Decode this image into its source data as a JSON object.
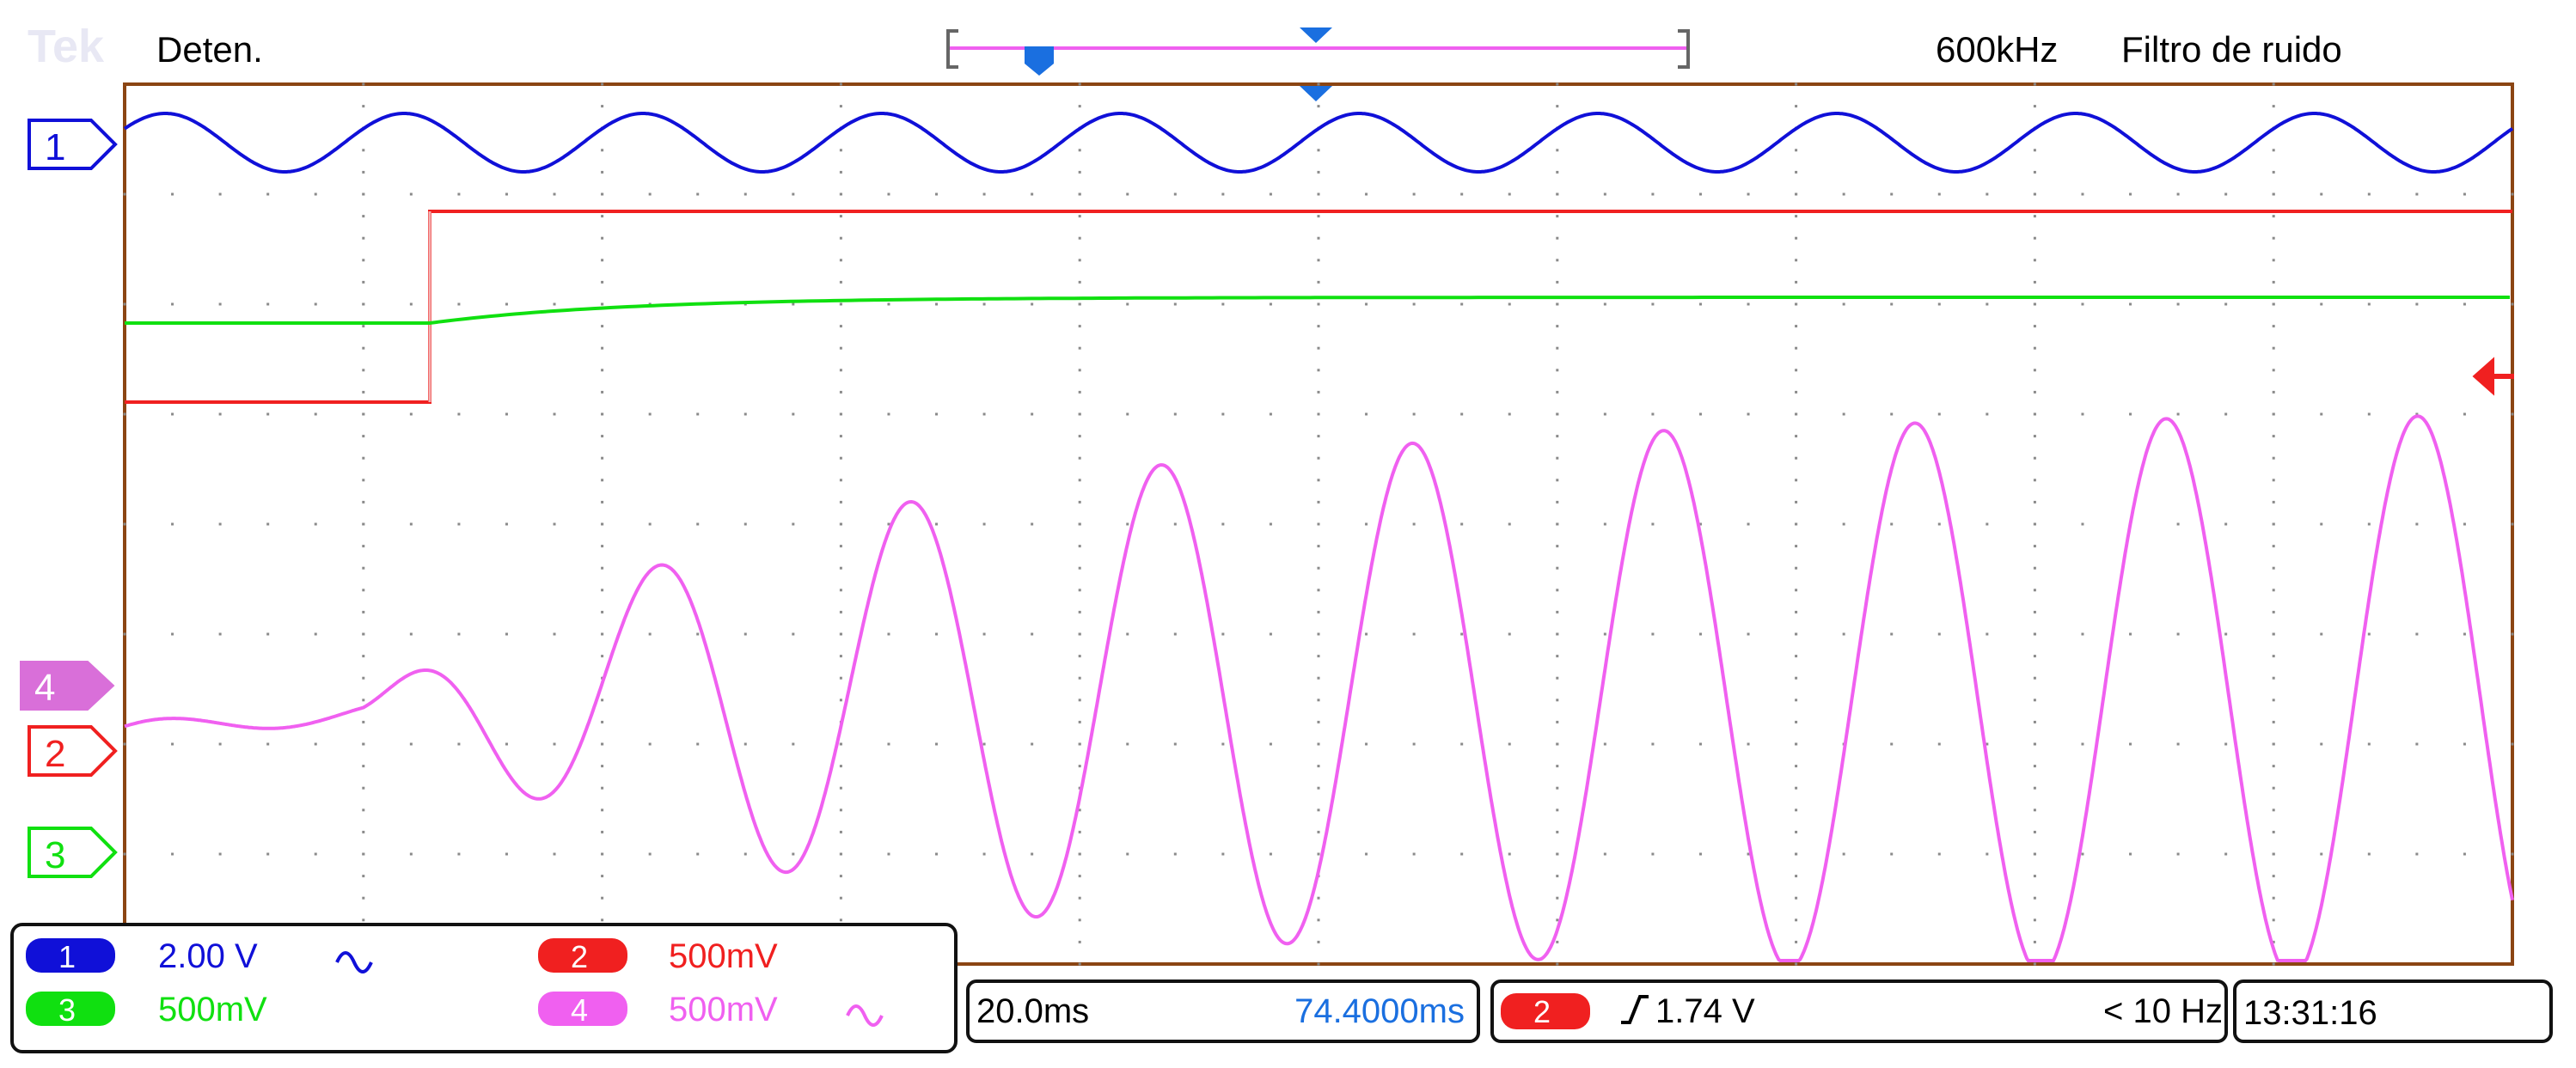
{
  "brand": "Tek",
  "status": "Deten.",
  "header_right": {
    "bandwidth": "600kHz",
    "filter": "Filtro de ruido"
  },
  "channels": [
    {
      "id": "1",
      "color": "#1010d8",
      "scale": "2.00 V",
      "coupling_icon": "ac-coupling-icon"
    },
    {
      "id": "2",
      "color": "#f02020",
      "scale": "500mV"
    },
    {
      "id": "3",
      "color": "#10e010",
      "scale": "500mV"
    },
    {
      "id": "4",
      "color": "#f060f0",
      "scale": "500mV",
      "coupling_icon": "ac-coupling-icon"
    }
  ],
  "timebase": {
    "horizontal_scale": "20.0ms",
    "position": "74.4000ms"
  },
  "trigger": {
    "source": "2",
    "slope_icon": "rising-edge-icon",
    "level": "1.74 V",
    "frequency": "< 10 Hz"
  },
  "clock": "13:31:16",
  "colors": {
    "background": "#ffffff",
    "graticule_border": "#8b4513",
    "graticule_dots": "#8a8a8a",
    "trigger_marker": "#1a6fe0"
  },
  "chart_data": {
    "type": "line",
    "grid": true,
    "divisions": {
      "horizontal": 10,
      "vertical": 8
    },
    "series": [
      {
        "name": "1",
        "waveform": "sine",
        "cycles": 10.0
      },
      {
        "name": "2",
        "waveform": "step",
        "low_level_div": 1.9,
        "high_level_div": 3.5,
        "step_at_div": 1.3
      },
      {
        "name": "3",
        "waveform": "rising_edge",
        "initial_div": 1.3,
        "final_div": 2.1,
        "step_at_div": 1.3
      },
      {
        "name": "4",
        "waveform": "growing_sine",
        "cycles": 9.5
      }
    ]
  }
}
